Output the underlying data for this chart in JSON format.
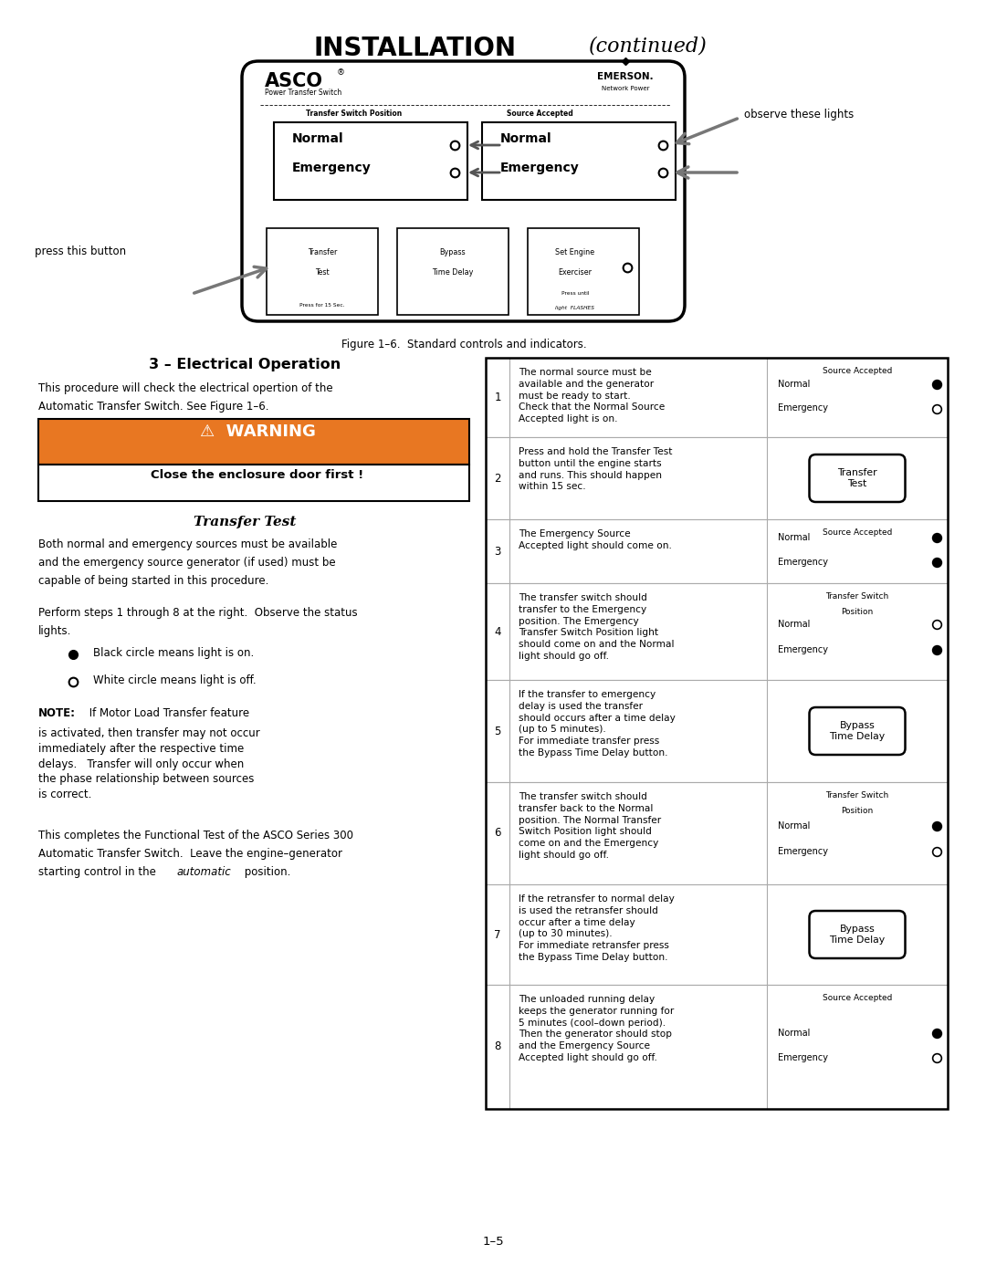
{
  "title_bold": "INSTALLATION",
  "title_italic": "(continued)",
  "figure_caption": "Figure 1–6.  Standard controls and indicators.",
  "page_number": "1–5",
  "section_title": "3 – Electrical Operation",
  "section_intro_1": "This procedure will check the electrical opertion of the",
  "section_intro_2": "Automatic Transfer Switch. See Figure 1–6.",
  "warning_text": "WARNING",
  "warning_subtext": "Close the enclosure door first !",
  "transfer_test_title": "Transfer Test",
  "tt_para1_1": "Both normal and emergency sources must be available",
  "tt_para1_2": "and the emergency source generator (if used) must be",
  "tt_para1_3": "capable of being started in this procedure.",
  "tt_para2_1": "Perform steps 1 through 8 at the right.  Observe the status",
  "tt_para2_2": "lights.",
  "bullet_black": "Black circle means light is on.",
  "bullet_white": "White circle means light is off.",
  "note_prefix": "NOTE:",
  "note_body": " If Motor Load Transfer feature\nis activated, then transfer may not occur\nimmediately after the respective time\ndelays.   Transfer will only occur when\nthe phase relationship between sources\nis correct.",
  "concluding_1": "This completes the Functional Test of the ASCO Series 300",
  "concluding_2": "Automatic Transfer Switch.  Leave the engine–generator",
  "concluding_3": "starting control in the ",
  "concluding_italic": "automatic",
  "concluding_4": " position.",
  "observe_lights": "observe these lights",
  "press_button": "press this button",
  "steps": [
    {
      "num": "1",
      "text_parts": [
        {
          "t": "The normal source must be\navailable and the generator\nmust be ready to start.\nCheck that the ",
          "i": false
        },
        {
          "t": "Normal Source\nAccepted",
          "i": true
        },
        {
          "t": " light is on.",
          "i": false
        }
      ],
      "indicator_type": "source_accepted",
      "normal_on": true,
      "emergency_on": false
    },
    {
      "num": "2",
      "text_parts": [
        {
          "t": "Press and ",
          "i": false
        },
        {
          "t": "hold",
          "i": false,
          "u": true
        },
        {
          "t": " the ",
          "i": false
        },
        {
          "t": "Transfer Test",
          "i": true
        },
        {
          "t": "\nbutton until the engine starts\nand runs. This should happen\nwithin 15 sec.",
          "i": false
        }
      ],
      "indicator_type": "button",
      "button_label": "Transfer\nTest"
    },
    {
      "num": "3",
      "text_parts": [
        {
          "t": "The ",
          "i": false
        },
        {
          "t": "Emergency Source\nAccepted",
          "i": true
        },
        {
          "t": " light should come on.",
          "i": false
        }
      ],
      "indicator_type": "source_accepted",
      "normal_on": true,
      "emergency_on": true
    },
    {
      "num": "4",
      "text_parts": [
        {
          "t": "The transfer switch should\ntransfer to the Emergency\nposition. The ",
          "i": false
        },
        {
          "t": "Emergency\nTransfer Switch Position",
          "i": true
        },
        {
          "t": " light\nshould come on and the ",
          "i": false
        },
        {
          "t": "Normal",
          "i": true
        },
        {
          "t": "\nlight should go off.",
          "i": false
        }
      ],
      "indicator_type": "transfer_switch",
      "normal_on": false,
      "emergency_on": true
    },
    {
      "num": "5",
      "text_parts": [
        {
          "t": "If the ",
          "i": false
        },
        {
          "t": "transfer to emergency\ndelay",
          "i": true
        },
        {
          "t": " is used the transfer\nshould occurs after a time delay\n(up to 5 minutes).\nFor immediate transfer press\nthe ",
          "i": false
        },
        {
          "t": "Bypass Time Delay",
          "i": true
        },
        {
          "t": " button.",
          "i": false
        }
      ],
      "indicator_type": "button",
      "button_label": "Bypass\nTime Delay"
    },
    {
      "num": "6",
      "text_parts": [
        {
          "t": "The transfer switch should\ntransfer back to the Normal\nposition. The ",
          "i": false
        },
        {
          "t": "Normal Transfer\nSwitch Position",
          "i": true
        },
        {
          "t": " light should\ncome on and the ",
          "i": false
        },
        {
          "t": "Emergency",
          "i": true
        },
        {
          "t": "\nlight should go off.",
          "i": false
        }
      ],
      "indicator_type": "transfer_switch",
      "normal_on": true,
      "emergency_on": false
    },
    {
      "num": "7",
      "text_parts": [
        {
          "t": "If the ",
          "i": false
        },
        {
          "t": "retransfer to normal delay",
          "i": true
        },
        {
          "t": "\nis used the retransfer should\noccur after a time delay\n(up to 30 minutes).\nFor immediate retransfer press\nthe ",
          "i": false
        },
        {
          "t": "Bypass Time Delay",
          "i": true
        },
        {
          "t": " button.",
          "i": false
        }
      ],
      "indicator_type": "button",
      "button_label": "Bypass\nTime Delay"
    },
    {
      "num": "8",
      "text_parts": [
        {
          "t": "The ",
          "i": false
        },
        {
          "t": "unloaded running delay",
          "i": true
        },
        {
          "t": "\nkeeps the generator running for\n5 minutes (cool–down period).\nThen the generator should stop\nand the ",
          "i": false
        },
        {
          "t": "Emergency Source\nAccepted",
          "i": true
        },
        {
          "t": " light should go off.",
          "i": false
        }
      ],
      "indicator_type": "source_accepted",
      "normal_on": true,
      "emergency_on": false
    }
  ],
  "bg_color": "#ffffff",
  "warning_bg": "#e87722",
  "table_border": "#aaaaaa",
  "row_tops": [
    10.05,
    9.18,
    8.28,
    7.58,
    6.52,
    5.4,
    4.28,
    3.18,
    1.82
  ]
}
